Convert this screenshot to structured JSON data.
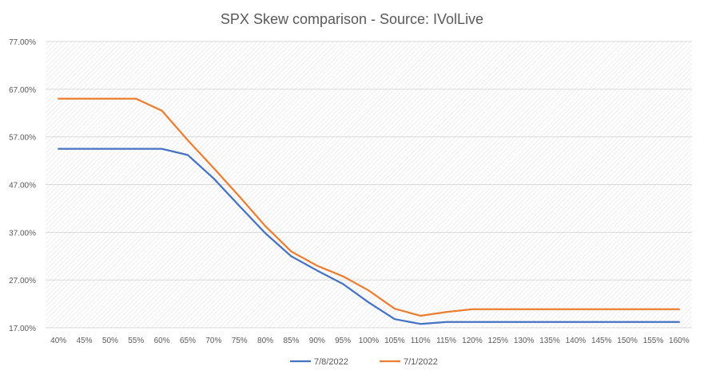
{
  "chart_data": {
    "type": "line",
    "title": "SPX Skew comparison - Source: IVolLive",
    "xlabel": "",
    "ylabel": "",
    "ylim": [
      17,
      77
    ],
    "y_tick_values": [
      17,
      27,
      37,
      47,
      57,
      67,
      77
    ],
    "y_tick_labels": [
      "17.00%",
      "27.00%",
      "37.00%",
      "47.00%",
      "57.00%",
      "67.00%",
      "77.00%"
    ],
    "categories": [
      "40%",
      "45%",
      "50%",
      "55%",
      "60%",
      "65%",
      "70%",
      "75%",
      "80%",
      "85%",
      "90%",
      "95%",
      "100%",
      "105%",
      "110%",
      "115%",
      "120%",
      "125%",
      "130%",
      "135%",
      "140%",
      "145%",
      "150%",
      "155%",
      "160%"
    ],
    "series": [
      {
        "name": "7/8/2022",
        "color": "#4472C4",
        "values": [
          54.5,
          54.5,
          54.5,
          54.5,
          54.5,
          53.2,
          48.3,
          42.5,
          36.8,
          32.0,
          29.0,
          26.2,
          22.3,
          18.8,
          17.8,
          18.2,
          18.2,
          18.2,
          18.2,
          18.2,
          18.2,
          18.2,
          18.2,
          18.2,
          18.2
        ]
      },
      {
        "name": "7/1/2022",
        "color": "#ED7D31",
        "values": [
          65.0,
          65.0,
          65.0,
          65.0,
          62.5,
          56.3,
          50.5,
          44.5,
          38.3,
          33.0,
          30.0,
          27.8,
          24.8,
          21.0,
          19.5,
          20.3,
          20.9,
          20.9,
          20.9,
          20.9,
          20.9,
          20.9,
          20.9,
          20.9,
          20.9
        ]
      }
    ],
    "grid": true,
    "legend_position": "bottom"
  }
}
